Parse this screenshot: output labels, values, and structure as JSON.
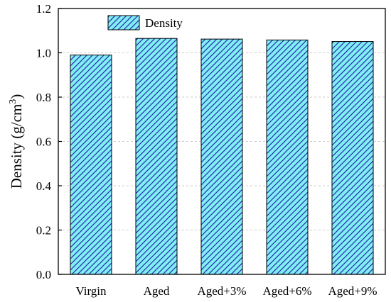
{
  "chart_data": {
    "type": "bar",
    "categories": [
      "Virgin",
      "Aged",
      "Aged+3%",
      "Aged+6%",
      "Aged+9%"
    ],
    "series": [
      {
        "name": "Density",
        "values": [
          0.99,
          1.065,
          1.062,
          1.058,
          1.051
        ]
      }
    ],
    "title": "",
    "xlabel": "",
    "ylabel": "Density (g/cm",
    "ylabel_superscript": "3",
    "ylabel_suffix": ")",
    "ylim": [
      0,
      1.2
    ],
    "yticks": [
      "0.0",
      "0.2",
      "0.4",
      "0.6",
      "0.8",
      "1.0",
      "1.2"
    ],
    "grid": "horizontal-dashed",
    "legend_position": "top-left",
    "colors": {
      "bar_fill": "#7FEFF2",
      "hatch": "#2A2AB0",
      "grid": "#bfbfbf",
      "axis": "#000000"
    }
  }
}
